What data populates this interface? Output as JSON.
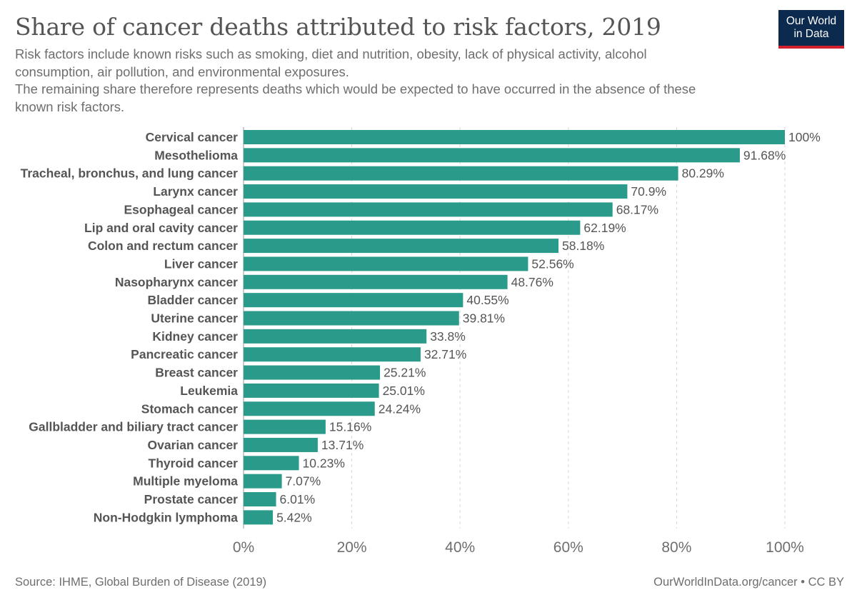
{
  "header": {
    "title": "Share of cancer deaths attributed to risk factors, 2019",
    "subtitle_lines": [
      "Risk factors include known risks such as smoking, diet and nutrition, obesity, lack of physical activity, alcohol",
      "consumption, air pollution, and environmental exposures.",
      "The remaining share therefore represents deaths which would be expected to have occurred in the absence of these",
      "known risk factors."
    ]
  },
  "logo": {
    "line1": "Our World",
    "line2": "in Data"
  },
  "colors": {
    "bar": "#2a9a8b",
    "logo_bg": "#0b2a4e",
    "logo_accent": "#d0202c"
  },
  "footer": {
    "source": "Source: IHME, Global Burden of Disease (2019)",
    "license": "OurWorldInData.org/cancer • CC BY"
  },
  "chart_data": {
    "type": "bar",
    "orientation": "horizontal",
    "title": "Share of cancer deaths attributed to risk factors, 2019",
    "categories": [
      "Cervical cancer",
      "Mesothelioma",
      "Tracheal, bronchus, and lung cancer",
      "Larynx cancer",
      "Esophageal cancer",
      "Lip and oral cavity cancer",
      "Colon and rectum cancer",
      "Liver cancer",
      "Nasopharynx cancer",
      "Bladder cancer",
      "Uterine cancer",
      "Kidney cancer",
      "Pancreatic cancer",
      "Breast cancer",
      "Leukemia",
      "Stomach cancer",
      "Gallbladder and biliary tract cancer",
      "Ovarian cancer",
      "Thyroid cancer",
      "Multiple myeloma",
      "Prostate cancer",
      "Non-Hodgkin lymphoma"
    ],
    "values": [
      100,
      91.68,
      80.29,
      70.9,
      68.17,
      62.19,
      58.18,
      52.56,
      48.76,
      40.55,
      39.81,
      33.8,
      32.71,
      25.21,
      25.01,
      24.24,
      15.16,
      13.71,
      10.23,
      7.07,
      6.01,
      5.42
    ],
    "value_labels": [
      "100%",
      "91.68%",
      "80.29%",
      "70.9%",
      "68.17%",
      "62.19%",
      "58.18%",
      "52.56%",
      "48.76%",
      "40.55%",
      "39.81%",
      "33.8%",
      "32.71%",
      "25.21%",
      "25.01%",
      "24.24%",
      "15.16%",
      "13.71%",
      "10.23%",
      "7.07%",
      "6.01%",
      "5.42%"
    ],
    "xlim": [
      0,
      100
    ],
    "x_ticks": [
      0,
      20,
      40,
      60,
      80,
      100
    ],
    "x_tick_labels": [
      "0%",
      "20%",
      "40%",
      "60%",
      "80%",
      "100%"
    ],
    "grid": true,
    "xlabel": "",
    "ylabel": ""
  }
}
